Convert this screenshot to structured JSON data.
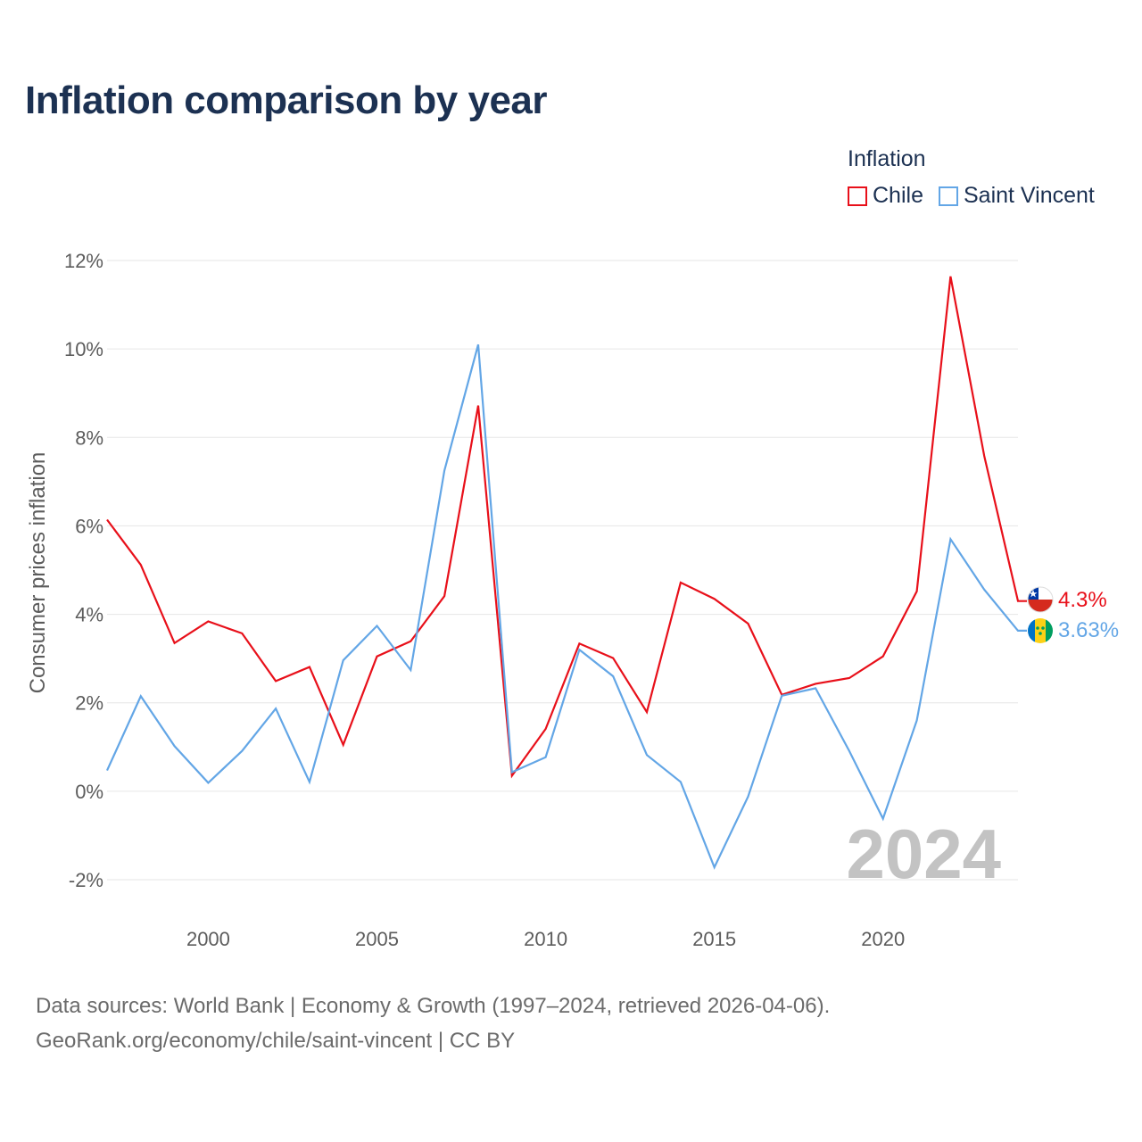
{
  "title": "Inflation comparison by year",
  "legend": {
    "title": "Inflation",
    "items": [
      {
        "name": "Chile",
        "color": "#e8101a"
      },
      {
        "name": "Saint Vincent",
        "color": "#63a6e6"
      }
    ]
  },
  "source": {
    "line1": "Data sources: World Bank | Economy & Growth (1997–2024, retrieved 2026-04-06).",
    "line2": "GeoRank.org/economy/chile/saint-vincent | CC BY"
  },
  "chart_data": {
    "type": "line",
    "title": "Inflation comparison by year",
    "xlabel": "",
    "ylabel": "Consumer prices inflation",
    "x": [
      1997,
      1998,
      1999,
      2000,
      2001,
      2002,
      2003,
      2004,
      2005,
      2006,
      2007,
      2008,
      2009,
      2010,
      2011,
      2012,
      2013,
      2014,
      2015,
      2016,
      2017,
      2018,
      2019,
      2020,
      2021,
      2022,
      2023,
      2024
    ],
    "xlim": [
      1997,
      2024
    ],
    "ylim": [
      -3,
      12
    ],
    "x_ticks": [
      2000,
      2005,
      2010,
      2015,
      2020
    ],
    "x_tick_labels": [
      "2000",
      "2005",
      "2010",
      "2015",
      "2020"
    ],
    "y_ticks": [
      12,
      10,
      8,
      6,
      4,
      2,
      0,
      -2
    ],
    "y_tick_labels": [
      "12%",
      "10%",
      "8%",
      "6%",
      "4%",
      "2%",
      "0%",
      "-2%"
    ],
    "grid": true,
    "legend_position": "top-right",
    "watermark": "2024",
    "series": [
      {
        "name": "Chile",
        "color": "#e8101a",
        "values": [
          6.14,
          5.12,
          3.35,
          3.84,
          3.57,
          2.49,
          2.81,
          1.05,
          3.05,
          3.39,
          4.41,
          8.72,
          0.35,
          1.41,
          3.34,
          3.01,
          1.79,
          4.72,
          4.35,
          3.79,
          2.18,
          2.43,
          2.56,
          3.05,
          4.52,
          11.64,
          7.58,
          4.3
        ],
        "end_label": "4.3%"
      },
      {
        "name": "Saint Vincent",
        "color": "#63a6e6",
        "values": [
          0.47,
          2.15,
          1.02,
          0.19,
          0.91,
          1.87,
          0.21,
          2.96,
          3.74,
          2.74,
          7.25,
          10.1,
          0.43,
          0.77,
          3.2,
          2.6,
          0.82,
          0.21,
          -1.72,
          -0.12,
          2.16,
          2.33,
          0.91,
          -0.62,
          1.6,
          5.7,
          4.56,
          3.63
        ],
        "end_label": "3.63%"
      }
    ]
  }
}
